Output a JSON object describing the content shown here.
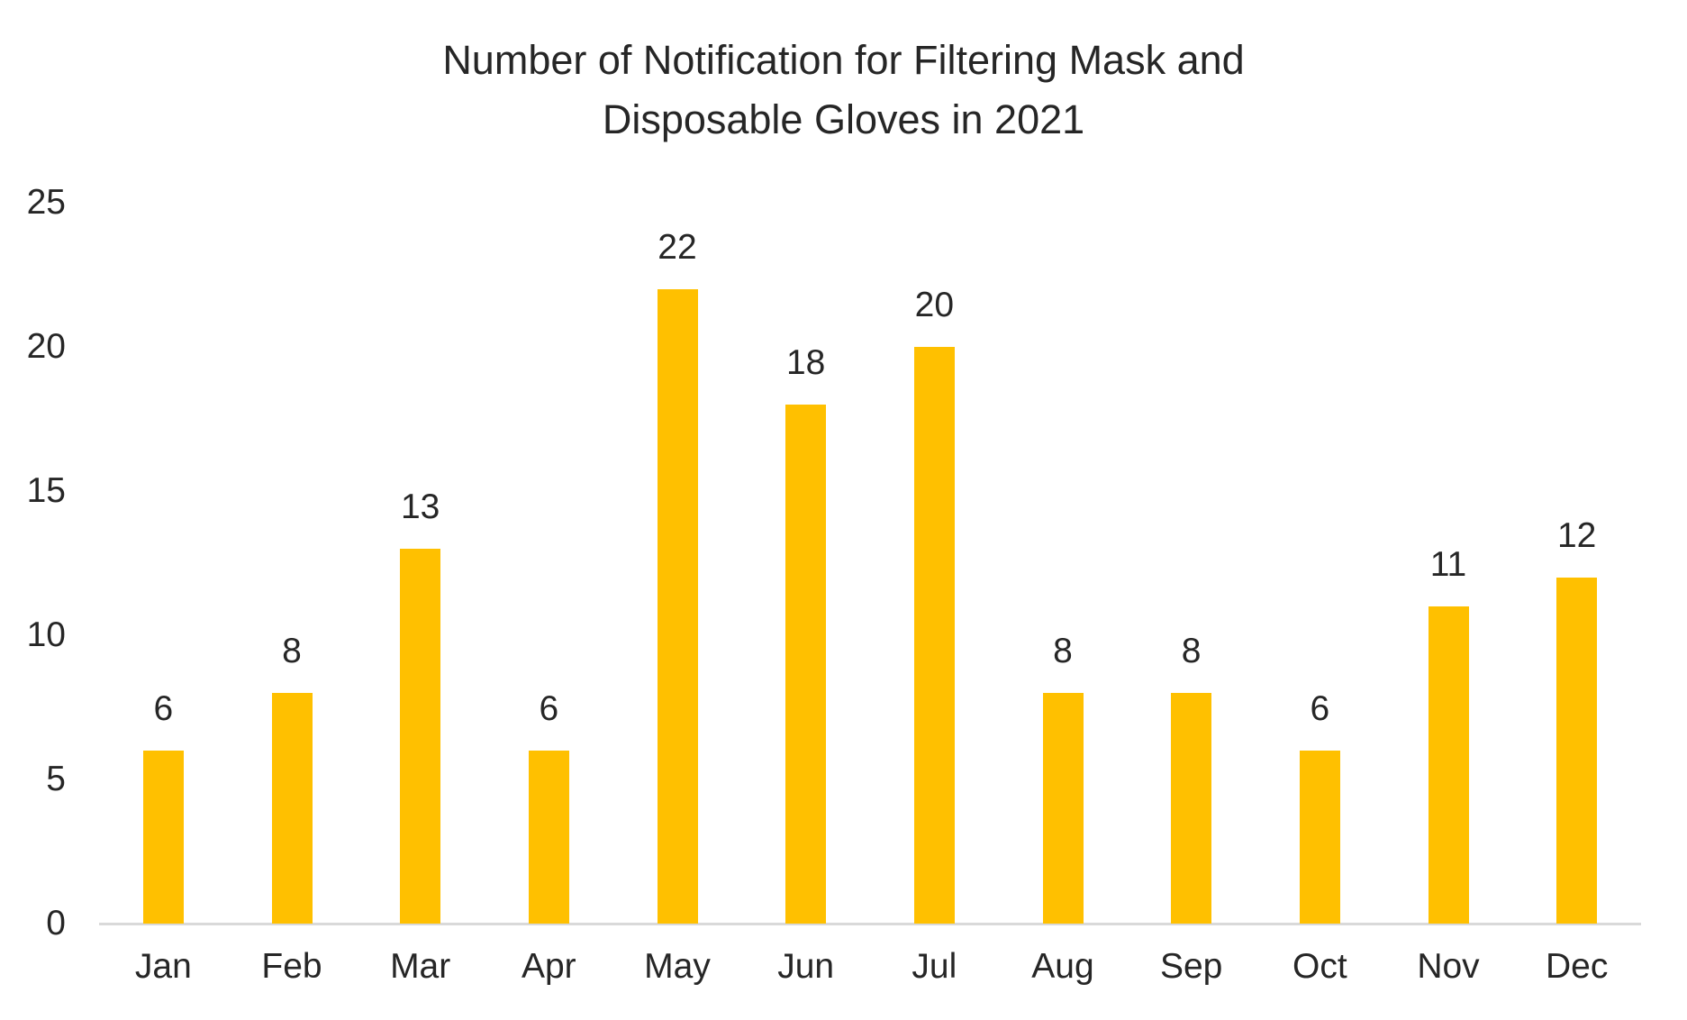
{
  "title": {
    "line1": "Number of Notification for Filtering Mask and",
    "line2": "Disposable Gloves in 2021"
  },
  "chart_data": {
    "type": "bar",
    "title": "Number of Notification for Filtering Mask and Disposable Gloves in 2021",
    "categories": [
      "Jan",
      "Feb",
      "Mar",
      "Apr",
      "May",
      "Jun",
      "Jul",
      "Aug",
      "Sep",
      "Oct",
      "Nov",
      "Dec"
    ],
    "values": [
      6,
      8,
      13,
      6,
      22,
      18,
      20,
      8,
      8,
      6,
      11,
      12
    ],
    "xlabel": "",
    "ylabel": "",
    "ylim": [
      0,
      25
    ],
    "yticks": [
      0,
      5,
      10,
      15,
      20,
      25
    ],
    "grid": false,
    "legend": "none",
    "data_labels": true,
    "bar_color": "#FFC000",
    "axis_line_color": "#D9D9D9",
    "text_color": "#262626"
  }
}
